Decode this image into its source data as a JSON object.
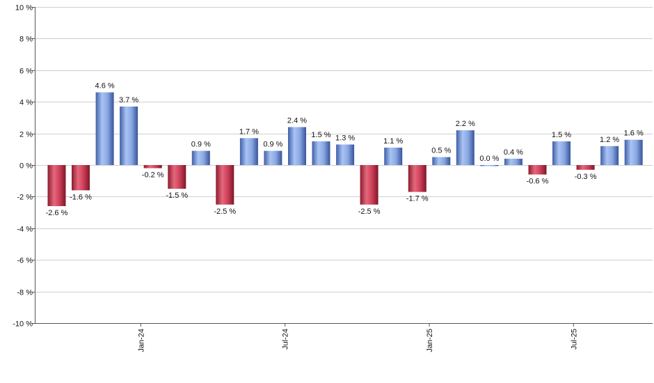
{
  "chart_data": {
    "type": "bar",
    "ylim": [
      -10,
      10
    ],
    "y_ticks": [
      10,
      8,
      6,
      4,
      2,
      0,
      -2,
      -4,
      -6,
      -8,
      -10
    ],
    "y_tick_labels": [
      "10 %",
      "8 %",
      "6 %",
      "4 %",
      "2 %",
      "0 %",
      "-2 %",
      "-4 %",
      "-6 %",
      "-8 %",
      "-10 %"
    ],
    "x_tick_labels": [
      {
        "label": "Jan-24",
        "after_bar": 3
      },
      {
        "label": "Jul-24",
        "after_bar": 9
      },
      {
        "label": "Jan-25",
        "after_bar": 15
      },
      {
        "label": "Jul-25",
        "after_bar": 21
      }
    ],
    "values": [
      -2.6,
      -1.6,
      4.6,
      3.7,
      -0.2,
      -1.5,
      0.9,
      -2.5,
      1.7,
      0.9,
      2.4,
      1.5,
      1.3,
      -2.5,
      1.1,
      -1.7,
      0.5,
      2.2,
      0.0,
      0.4,
      -0.6,
      1.5,
      -0.3,
      1.2,
      1.6
    ],
    "labels": [
      "-2.6 %",
      "-1.6 %",
      "4.6 %",
      "3.7 %",
      "-0.2 %",
      "-1.5 %",
      "0.9 %",
      "-2.5 %",
      "1.7 %",
      "0.9 %",
      "2.4 %",
      "1.5 %",
      "1.3 %",
      "-2.5 %",
      "1.1 %",
      "-1.7 %",
      "0.5 %",
      "2.2 %",
      "0.0 %",
      "0.4 %",
      "-0.6 %",
      "1.5 %",
      "-0.3 %",
      "1.2 %",
      "1.6 %"
    ],
    "colors": {
      "positive": "#5b7fd0",
      "negative": "#c8354e"
    },
    "grid": true,
    "legend": "none"
  }
}
